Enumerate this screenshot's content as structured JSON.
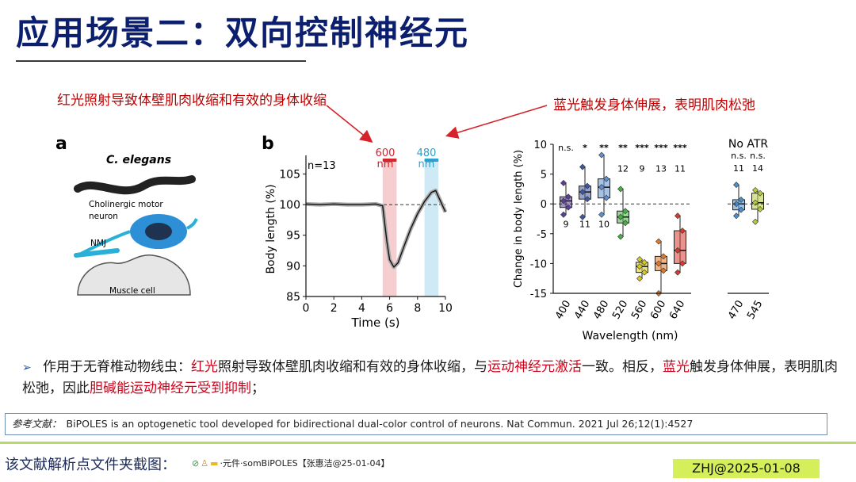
{
  "slide": {
    "title": "应用场景二：双向控制神经元",
    "annotation_red_light": "红光照射导致体壁肌肉收缩和有效的身体收缩",
    "annotation_blue_light": "蓝光触发身体伸展，表明肌肉松弛"
  },
  "panel_a": {
    "letter": "a",
    "organism": "C. elegans",
    "neuron_label_1": "Cholinergic motor",
    "neuron_label_2": "neuron",
    "nmj_label": "NMJ",
    "muscle_label": "Muscle cell"
  },
  "panel_b": {
    "letter": "b",
    "n_label": "n=13",
    "red_light_label_1": "600",
    "red_light_label_2": "nm",
    "blue_light_label_1": "480",
    "blue_light_label_2": "nm"
  },
  "description": {
    "bullet": "➢",
    "seg1": "作用于无脊椎动物线虫：",
    "seg2": "红光",
    "seg3": "照射导致体壁肌肉收缩和有效的身体收缩，与",
    "seg4": "运动神经元激活",
    "seg5": "一致。相反，",
    "seg6": "蓝光",
    "seg7": "触发身体伸展，表明肌肉松弛，因此",
    "seg8": "胆碱能运动神经元受到抑制",
    "seg9": "；"
  },
  "reference": {
    "label": "参考文献：",
    "text": "BiPOLES is an optogenetic tool developed for bidirectional dual-color control of neurons. Nat Commun. 2021 Jul 26;12(1):4527"
  },
  "footer": {
    "label": "该文献解析点文件夹截图：",
    "folder_path": "·元件·somBiPOLES【张惠洁@25-01-04】",
    "badge": "ZHJ@2025-01-08"
  },
  "colors": {
    "title": "#0b1f6e",
    "red_light": "#d6222a",
    "blue_light": "#2aa0d0",
    "footer_badge": "#d4ef5a"
  },
  "chart_data": [
    {
      "type": "line",
      "title": "",
      "xlabel": "Time (s)",
      "ylabel": "Body length (%)",
      "xlim": [
        0,
        10
      ],
      "ylim": [
        85,
        107
      ],
      "xticks": [
        0,
        2,
        4,
        6,
        8,
        10
      ],
      "yticks": [
        85,
        90,
        95,
        100,
        105
      ],
      "baseline": 100,
      "light_windows": [
        {
          "label": "600 nm",
          "start": 5.5,
          "end": 6.5,
          "color": "red"
        },
        {
          "label": "480 nm",
          "start": 8.5,
          "end": 9.5,
          "color": "blue"
        }
      ],
      "series": [
        {
          "name": "mean body length",
          "x": [
            0,
            1,
            2,
            3,
            4,
            5,
            5.5,
            5.8,
            6.0,
            6.3,
            6.6,
            7.0,
            7.5,
            8.0,
            8.5,
            9.0,
            9.3,
            9.6,
            10
          ],
          "y": [
            100.1,
            100.0,
            100.1,
            100.0,
            100.0,
            100.1,
            99.8,
            94,
            91,
            89.8,
            90.5,
            93,
            96,
            98.5,
            100.5,
            102,
            102.3,
            100.8,
            98.8
          ]
        }
      ]
    },
    {
      "type": "box",
      "xlabel": "Wavelength (nm)",
      "ylabel": "Change in body length (%)",
      "ylim": [
        -15,
        10
      ],
      "yticks": [
        -15,
        -10,
        -5,
        0,
        5,
        10
      ],
      "groups": [
        "400",
        "440",
        "480",
        "520",
        "560",
        "600",
        "640"
      ],
      "significance": [
        "n.s.",
        "*",
        "**",
        "**",
        "***",
        "***",
        "***"
      ],
      "n": [
        9,
        11,
        10,
        12,
        9,
        13,
        11
      ],
      "medians": [
        0.5,
        2,
        2.8,
        -2.2,
        -10.5,
        -10,
        -7.8
      ],
      "q1": [
        -0.6,
        0.8,
        1,
        -3.2,
        -11.5,
        -11.2,
        -10
      ],
      "q3": [
        1.2,
        3,
        4.2,
        -1.2,
        -9.8,
        -8.8,
        -4.5
      ],
      "min": [
        -1.8,
        -2.2,
        -1.8,
        -5.5,
        -12.5,
        -15,
        -11.5
      ],
      "max": [
        3.5,
        6.2,
        8.2,
        2.5,
        -9.3,
        -6.3,
        -2
      ],
      "colors": [
        "#5b3e96",
        "#3e58a0",
        "#5f8fcf",
        "#46b044",
        "#d8cc22",
        "#e07a2a",
        "#d63a30"
      ]
    },
    {
      "type": "box",
      "title": "No ATR",
      "groups": [
        "470",
        "545"
      ],
      "significance": [
        "n.s.",
        "n.s."
      ],
      "n": [
        11,
        14
      ],
      "medians": [
        0,
        0.2
      ],
      "q1": [
        -1,
        -0.9
      ],
      "q3": [
        0.7,
        1.8
      ],
      "min": [
        -2,
        -3
      ],
      "max": [
        3.2,
        2.3
      ],
      "colors": [
        "#4a8fd0",
        "#b6cc3a"
      ]
    }
  ]
}
